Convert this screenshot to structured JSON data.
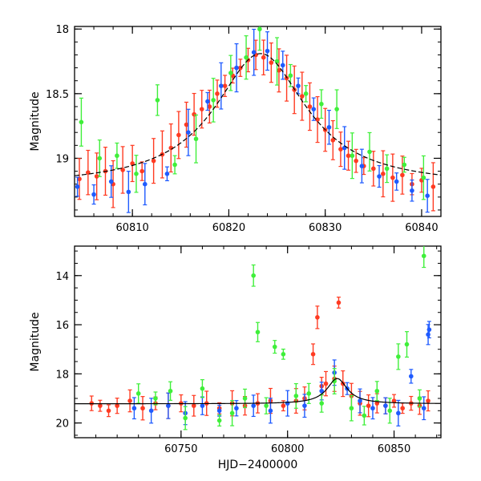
{
  "chart_data": [
    {
      "type": "scatter",
      "title": "",
      "xlabel": "",
      "ylabel": "Magnitude",
      "xlim": [
        60804,
        60842
      ],
      "ylim": [
        19.45,
        17.98
      ],
      "y_inverted": true,
      "x_ticks": [
        60810,
        60820,
        60830,
        60840
      ],
      "x_tick_labels": [
        "60810",
        "60820",
        "60830",
        "60840"
      ],
      "y_ticks": [
        18,
        18.5,
        19
      ],
      "y_tick_labels": [
        "18",
        "18.5",
        "19"
      ],
      "grid": false,
      "legend": "none",
      "model_curve": {
        "name": "",
        "color": "#000000",
        "baseline": 19.22,
        "peak_x": 60823.3,
        "peak_y": 18.19,
        "width": 5.8
      },
      "series": [
        {
          "name": "",
          "color": "#ff3b22",
          "points": [
            [
              60804.5,
              19.16
            ],
            [
              60805.4,
              19.11
            ],
            [
              60806.3,
              19.14
            ],
            [
              60807.2,
              19.1
            ],
            [
              60808.0,
              19.2
            ],
            [
              60809.0,
              19.09
            ],
            [
              60810.0,
              19.04
            ],
            [
              60811.0,
              19.1
            ],
            [
              60812.2,
              19.02
            ],
            [
              60813.1,
              18.97
            ],
            [
              60814.0,
              18.92
            ],
            [
              60814.8,
              18.82
            ],
            [
              60815.6,
              18.74
            ],
            [
              60816.4,
              18.66
            ],
            [
              60817.2,
              18.62
            ],
            [
              60818.0,
              18.6
            ],
            [
              60818.8,
              18.5
            ],
            [
              60819.6,
              18.44
            ],
            [
              60820.4,
              18.36
            ],
            [
              60821.2,
              18.3
            ],
            [
              60822.0,
              18.24
            ],
            [
              60822.8,
              18.2
            ],
            [
              60823.6,
              18.22
            ],
            [
              60824.4,
              18.26
            ],
            [
              60825.2,
              18.32
            ],
            [
              60826.0,
              18.38
            ],
            [
              60826.8,
              18.47
            ],
            [
              60827.6,
              18.52
            ],
            [
              60828.4,
              18.6
            ],
            [
              60829.2,
              18.7
            ],
            [
              60830.0,
              18.78
            ],
            [
              60830.8,
              18.86
            ],
            [
              60831.6,
              18.93
            ],
            [
              60832.4,
              18.98
            ],
            [
              60833.2,
              19.02
            ],
            [
              60834.0,
              19.06
            ],
            [
              60835.0,
              19.08
            ],
            [
              60836.0,
              19.12
            ],
            [
              60837.0,
              19.15
            ],
            [
              60838.0,
              19.13
            ],
            [
              60839.0,
              19.2
            ],
            [
              60840.0,
              19.17
            ],
            [
              60841.2,
              19.22
            ]
          ]
        },
        {
          "name": "",
          "color": "#1f5bff",
          "points": [
            [
              60804.3,
              19.22
            ],
            [
              60806.0,
              19.28
            ],
            [
              60807.8,
              19.18
            ],
            [
              60809.6,
              19.26
            ],
            [
              60811.3,
              19.2
            ],
            [
              60813.6,
              19.12
            ],
            [
              60815.8,
              18.8
            ],
            [
              60817.8,
              18.56
            ],
            [
              60819.2,
              18.44
            ],
            [
              60820.8,
              18.3
            ],
            [
              60822.6,
              18.18
            ],
            [
              60824.0,
              18.17
            ],
            [
              60825.6,
              18.28
            ],
            [
              60827.2,
              18.44
            ],
            [
              60828.8,
              18.62
            ],
            [
              60830.4,
              18.76
            ],
            [
              60832.0,
              18.92
            ],
            [
              60833.8,
              19.06
            ],
            [
              60835.6,
              19.14
            ],
            [
              60837.4,
              19.18
            ],
            [
              60839.0,
              19.25
            ],
            [
              60840.6,
              19.29
            ]
          ]
        },
        {
          "name": "",
          "color": "#3fef3a",
          "points": [
            [
              60804.7,
              18.72
            ],
            [
              60806.6,
              19.0
            ],
            [
              60808.4,
              18.98
            ],
            [
              60810.4,
              19.12
            ],
            [
              60812.6,
              18.55
            ],
            [
              60814.4,
              19.05
            ],
            [
              60816.6,
              18.85
            ],
            [
              60818.4,
              18.55
            ],
            [
              60820.2,
              18.34
            ],
            [
              60821.8,
              18.22
            ],
            [
              60823.2,
              18.0
            ],
            [
              60825.0,
              18.25
            ],
            [
              60826.4,
              18.36
            ],
            [
              60828.0,
              18.5
            ],
            [
              60829.6,
              18.58
            ],
            [
              60831.2,
              18.62
            ],
            [
              60832.8,
              18.98
            ],
            [
              60834.6,
              18.95
            ],
            [
              60836.4,
              19.08
            ],
            [
              60838.2,
              19.05
            ],
            [
              60840.2,
              19.15
            ]
          ]
        }
      ]
    },
    {
      "type": "scatter",
      "title": "",
      "xlabel": "HJD−2400000",
      "ylabel": "Magnitude",
      "xlim": [
        60700,
        60872
      ],
      "ylim": [
        20.6,
        12.8
      ],
      "y_inverted": true,
      "x_ticks": [
        60750,
        60800,
        60850
      ],
      "x_tick_labels": [
        "60750",
        "60800",
        "60850"
      ],
      "y_ticks": [
        14,
        16,
        18,
        20
      ],
      "y_tick_labels": [
        "14",
        "16",
        "18",
        "20"
      ],
      "grid": false,
      "legend": "none",
      "model_curve": {
        "name": "",
        "color": "#000000",
        "baseline": 19.22,
        "peak_x": 60823.3,
        "peak_y": 18.19,
        "width": 5.8
      },
      "series": [
        {
          "name": "",
          "color": "#ff3b22",
          "points": [
            [
              60708,
              19.2
            ],
            [
              60712,
              19.3
            ],
            [
              60716,
              19.5
            ],
            [
              60720,
              19.3
            ],
            [
              60726,
              19.1
            ],
            [
              60732,
              19.4
            ],
            [
              60738,
              19.2
            ],
            [
              60744,
              19.3
            ],
            [
              60750,
              19.2
            ],
            [
              60756,
              19.3
            ],
            [
              60762,
              19.2
            ],
            [
              60768,
              19.4
            ],
            [
              60774,
              19.2
            ],
            [
              60780,
              19.3
            ],
            [
              60786,
              19.2
            ],
            [
              60792,
              19.1
            ],
            [
              60798,
              19.3
            ],
            [
              60804,
              19.1
            ],
            [
              60808,
              19.0
            ],
            [
              60812,
              17.2
            ],
            [
              60814,
              15.7
            ],
            [
              60816,
              18.5
            ],
            [
              60818,
              18.4
            ],
            [
              60822,
              18.2
            ],
            [
              60824,
              15.1
            ],
            [
              60826,
              18.4
            ],
            [
              60830,
              18.9
            ],
            [
              60834,
              19.2
            ],
            [
              60838,
              19.3
            ],
            [
              60842,
              19.2
            ],
            [
              60846,
              19.3
            ],
            [
              60850,
              19.1
            ],
            [
              60854,
              19.4
            ],
            [
              60858,
              19.2
            ],
            [
              60862,
              19.3
            ],
            [
              60866,
              19.1
            ]
          ]
        },
        {
          "name": "",
          "color": "#1f5bff",
          "points": [
            [
              60728,
              19.4
            ],
            [
              60736,
              19.5
            ],
            [
              60744,
              19.3
            ],
            [
              60752,
              19.6
            ],
            [
              60760,
              19.3
            ],
            [
              60768,
              19.5
            ],
            [
              60776,
              19.4
            ],
            [
              60784,
              19.3
            ],
            [
              60792,
              19.5
            ],
            [
              60800,
              19.2
            ],
            [
              60808,
              19.3
            ],
            [
              60816,
              18.7
            ],
            [
              60822,
              17.95
            ],
            [
              60828,
              18.6
            ],
            [
              60834,
              19.1
            ],
            [
              60840,
              19.4
            ],
            [
              60846,
              19.3
            ],
            [
              60852,
              19.6
            ],
            [
              60858,
              18.1
            ],
            [
              60864,
              19.4
            ],
            [
              60866,
              16.4
            ],
            [
              60866.5,
              16.2
            ]
          ]
        },
        {
          "name": "",
          "color": "#3fef3a",
          "points": [
            [
              60730,
              18.8
            ],
            [
              60738,
              19.0
            ],
            [
              60745,
              18.7
            ],
            [
              60752,
              19.8
            ],
            [
              60760,
              18.6
            ],
            [
              60768,
              19.9
            ],
            [
              60774,
              19.6
            ],
            [
              60780,
              19.0
            ],
            [
              60784,
              14.0
            ],
            [
              60786,
              16.3
            ],
            [
              60790,
              19.3
            ],
            [
              60794,
              16.9
            ],
            [
              60798,
              17.2
            ],
            [
              60804,
              18.9
            ],
            [
              60810,
              18.8
            ],
            [
              60816,
              19.2
            ],
            [
              60822,
              18.3
            ],
            [
              60830,
              19.4
            ],
            [
              60836,
              19.7
            ],
            [
              60842,
              18.7
            ],
            [
              60848,
              19.5
            ],
            [
              60852,
              17.3
            ],
            [
              60856,
              16.8
            ],
            [
              60862,
              19.0
            ],
            [
              60864,
              13.2
            ]
          ]
        }
      ]
    }
  ]
}
